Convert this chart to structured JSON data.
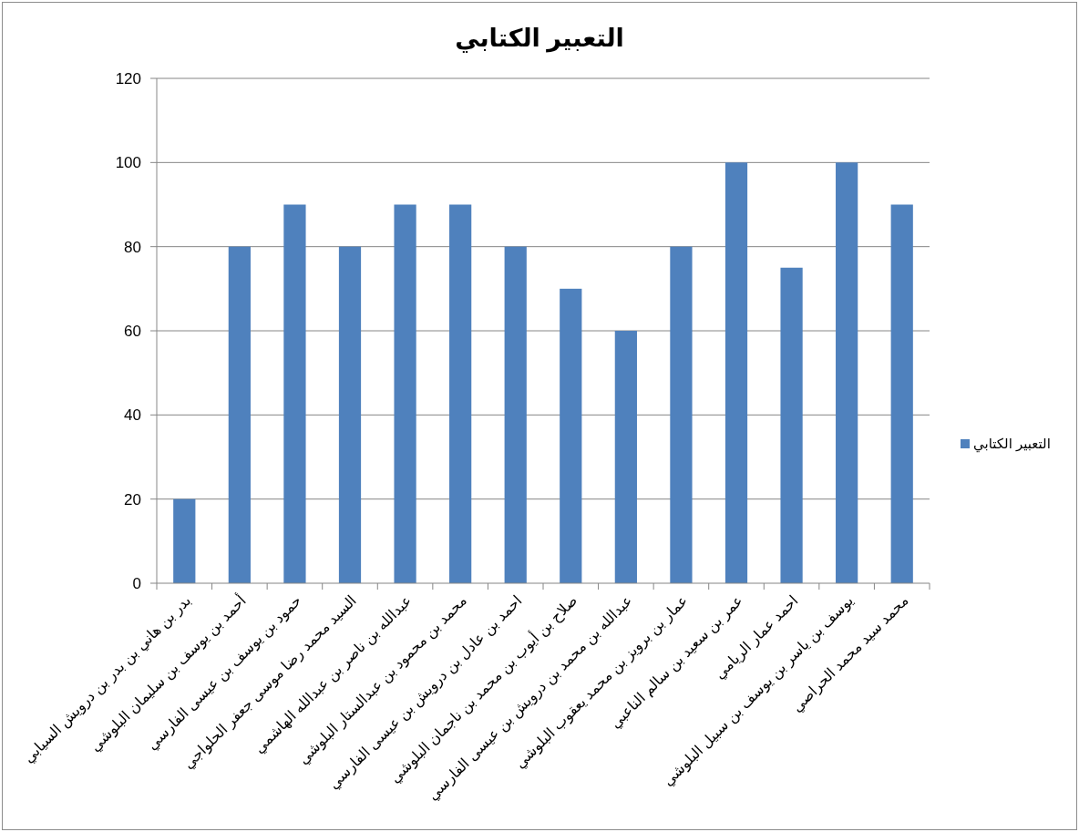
{
  "chart_data": {
    "type": "bar",
    "title": "التعبير الكتابي",
    "categories": [
      "بدر بن هاني بن بدر بن درويش السيابي",
      "أحمد بن يوسف بن سليمان البلوشي",
      "حمود بن يوسف بن عيسى الفارسي",
      "السيد محمد رضا موسى جعفر الحلواجي",
      "عبدالله بن ناصر بن عبدالله الهاشمي",
      "محمد بن محمود بن عبدالستار البلوشي",
      "احمد بن عادل بن درويش بن عيسى الفارسي",
      "صلاح بن أيوب بن محمد بن ناجمان البلوشي",
      "عبدالله بن محمد بن درويش بن عيسى الفارسي",
      "عمار بن برويز بن محمد يعقوب البلوشي",
      "عمر بن سعيد بن سالم الناعبي",
      "احمد عمار الريامي",
      "يوسف بن ياسر بن يوسف بن سبيل البلوشي",
      "محمد سيد محمد الحراصي"
    ],
    "series": [
      {
        "name": "التعبير الكتابي",
        "color": "#4f81bd",
        "values": [
          20,
          80,
          90,
          80,
          90,
          90,
          80,
          70,
          60,
          80,
          100,
          75,
          100,
          90
        ]
      }
    ],
    "ylim": [
      0,
      120
    ],
    "yticks": [
      0,
      20,
      40,
      60,
      80,
      100,
      120
    ],
    "grid": "y",
    "legend": "right"
  }
}
